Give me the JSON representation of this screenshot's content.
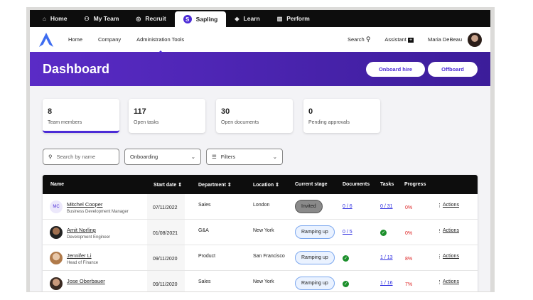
{
  "top_tabs": [
    {
      "label": "Home",
      "icon": "home-icon"
    },
    {
      "label": "My Team",
      "icon": "team-icon"
    },
    {
      "label": "Recruit",
      "icon": "recruit-icon"
    },
    {
      "label": "Sapling",
      "icon": "sapling-logo-icon",
      "active": true
    },
    {
      "label": "Learn",
      "icon": "learn-icon"
    },
    {
      "label": "Perform",
      "icon": "perform-icon"
    }
  ],
  "nav": {
    "links": [
      "Home",
      "Company",
      "Administration Tools"
    ],
    "active": "Administration Tools",
    "search": "Search",
    "assistant": "Assistant",
    "user": "Maria DeBeau"
  },
  "header": {
    "title": "Dashboard",
    "onboard": "Onboard hire",
    "offboard": "Offboard"
  },
  "cards": [
    {
      "value": "8",
      "label": "Team members",
      "selected": true
    },
    {
      "value": "117",
      "label": "Open tasks"
    },
    {
      "value": "30",
      "label": "Open documents"
    },
    {
      "value": "0",
      "label": "Pending approvals"
    }
  ],
  "filters": {
    "search_placeholder": "Search by name",
    "stage": "Onboarding",
    "filters": "Filters"
  },
  "table": {
    "headers": [
      "Name",
      "Start date",
      "Department",
      "Location",
      "Current stage",
      "Documents",
      "Tasks",
      "Progress"
    ],
    "rows": [
      {
        "name": "Mitchel Cooper",
        "role": "Business Development Manager",
        "initials": "MC",
        "start": "07/11/2022",
        "dept": "Sales",
        "loc": "London",
        "stage": "Invited",
        "docs": "0 / 6",
        "tasks": "0 / 31",
        "progress": "0%",
        "actions": "Actions"
      },
      {
        "name": "Amit Norling",
        "role": "Development Engineer",
        "start": "01/08/2021",
        "dept": "G&A",
        "loc": "New York",
        "stage": "Ramping up",
        "docs": "0 / 5",
        "tasks": "complete",
        "progress": "0%",
        "actions": "Actions"
      },
      {
        "name": "Jennifer Li",
        "role": "Head of Finance",
        "start": "09/11/2020",
        "dept": "Product",
        "loc": "San Francisco",
        "stage": "Ramping up",
        "docs": "complete",
        "tasks": "1 / 13",
        "progress": "8%",
        "actions": "Actions"
      },
      {
        "name": "Jose Oberbauer",
        "role": "",
        "start": "09/11/2020",
        "dept": "Sales",
        "loc": "New York",
        "stage": "Ramping up",
        "docs": "complete",
        "tasks": "1 / 16",
        "progress": "7%",
        "actions": "Actions"
      }
    ]
  },
  "colors": {
    "accent": "#4b2bd6",
    "danger": "#dd2222",
    "success": "#1c8f2b"
  }
}
